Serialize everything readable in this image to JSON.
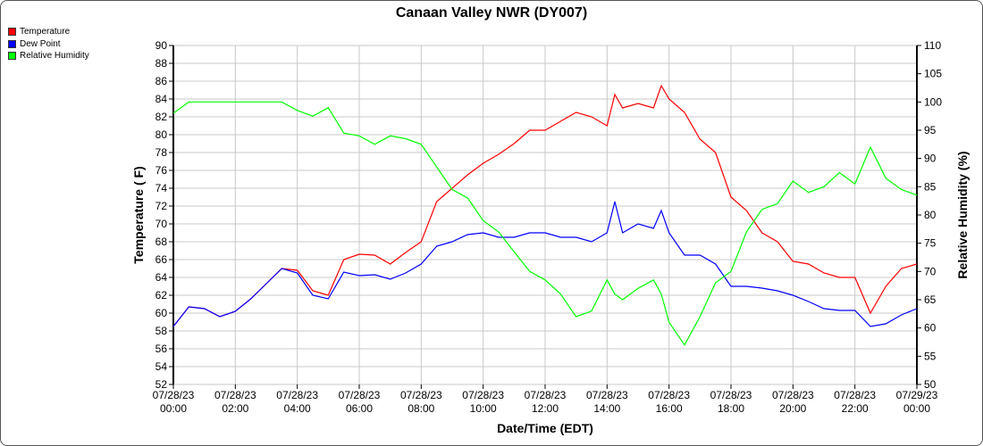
{
  "chart_data": {
    "type": "line",
    "title": "Canaan Valley NWR (DY007)",
    "xlabel": "Date/Time (EDT)",
    "ylabel": "Temperature ( F)",
    "y2label": "Relative Humidity (%)",
    "ylim": [
      52,
      90
    ],
    "y2lim": [
      50,
      110
    ],
    "yticks": [
      52,
      54,
      56,
      58,
      60,
      62,
      64,
      66,
      68,
      70,
      72,
      74,
      76,
      78,
      80,
      82,
      84,
      86,
      88,
      90
    ],
    "y2ticks": [
      50,
      55,
      60,
      65,
      70,
      75,
      80,
      85,
      90,
      95,
      100,
      105,
      110
    ],
    "xticks": [
      [
        "07/28/23",
        "00:00"
      ],
      [
        "07/28/23",
        "02:00"
      ],
      [
        "07/28/23",
        "04:00"
      ],
      [
        "07/28/23",
        "06:00"
      ],
      [
        "07/28/23",
        "08:00"
      ],
      [
        "07/28/23",
        "10:00"
      ],
      [
        "07/28/23",
        "12:00"
      ],
      [
        "07/28/23",
        "14:00"
      ],
      [
        "07/28/23",
        "16:00"
      ],
      [
        "07/28/23",
        "18:00"
      ],
      [
        "07/28/23",
        "20:00"
      ],
      [
        "07/28/23",
        "22:00"
      ],
      [
        "07/29/23",
        "00:00"
      ]
    ],
    "grid": true,
    "legend": "top-left",
    "x": [
      "00:00",
      "00:30",
      "01:00",
      "01:30",
      "02:00",
      "02:30",
      "03:00",
      "03:30",
      "04:00",
      "04:30",
      "05:00",
      "05:30",
      "06:00",
      "06:30",
      "07:00",
      "07:30",
      "08:00",
      "08:30",
      "09:00",
      "09:30",
      "10:00",
      "10:30",
      "11:00",
      "11:30",
      "12:00",
      "12:30",
      "13:00",
      "13:30",
      "14:00",
      "14:15",
      "14:30",
      "15:00",
      "15:30",
      "15:45",
      "16:00",
      "16:30",
      "17:00",
      "17:30",
      "18:00",
      "18:30",
      "19:00",
      "19:30",
      "20:00",
      "20:30",
      "21:00",
      "21:30",
      "22:00",
      "22:30",
      "23:00",
      "23:30",
      "24:00"
    ],
    "series": [
      {
        "name": "Temperature",
        "axis": "left",
        "color": "#ff0000",
        "values": [
          58.5,
          60.7,
          60.5,
          59.6,
          60.2,
          61.6,
          63.3,
          65.0,
          64.8,
          62.5,
          62.0,
          66.0,
          66.6,
          66.5,
          65.5,
          66.8,
          68.0,
          72.5,
          74.0,
          75.5,
          76.8,
          77.8,
          79.0,
          80.5,
          80.5,
          81.5,
          82.5,
          82.0,
          81.0,
          84.5,
          83.0,
          83.5,
          83.0,
          85.5,
          84.0,
          82.5,
          79.5,
          78.0,
          73.0,
          71.5,
          69.0,
          68.0,
          65.8,
          65.5,
          64.5,
          64.0,
          64.0,
          60.0,
          63.0,
          65.0,
          65.5
        ]
      },
      {
        "name": "Dew Point",
        "axis": "left",
        "color": "#0000ff",
        "values": [
          58.5,
          60.7,
          60.5,
          59.6,
          60.2,
          61.6,
          63.3,
          65.0,
          64.5,
          62.0,
          61.6,
          64.6,
          64.2,
          64.3,
          63.8,
          64.5,
          65.5,
          67.5,
          68.0,
          68.8,
          69.0,
          68.5,
          68.5,
          69.0,
          69.0,
          68.5,
          68.5,
          68.0,
          69.0,
          72.5,
          69.0,
          70.0,
          69.5,
          71.5,
          69.0,
          66.5,
          66.5,
          65.5,
          63.0,
          63.0,
          62.8,
          62.5,
          62.0,
          61.3,
          60.5,
          60.3,
          60.3,
          58.5,
          58.8,
          59.8,
          60.5
        ]
      },
      {
        "name": "Relative Humidity",
        "axis": "right",
        "color": "#00ff00",
        "values": [
          98,
          100,
          100,
          100,
          100,
          100,
          100,
          100,
          98.5,
          97.5,
          99,
          94.5,
          94,
          92.5,
          94,
          93.5,
          92.5,
          88.5,
          84.5,
          83,
          79,
          77,
          73.5,
          70,
          68.5,
          66,
          62,
          63,
          68.5,
          66,
          65,
          67,
          68.5,
          66,
          61,
          57,
          62,
          68,
          70,
          77,
          81,
          82,
          86,
          84,
          85,
          87.5,
          85.5,
          92,
          86.5,
          84.5,
          83.5
        ]
      }
    ]
  }
}
